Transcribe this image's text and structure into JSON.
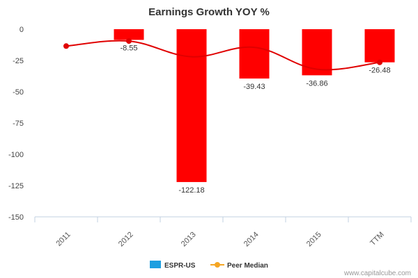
{
  "chart_data": {
    "type": "bar",
    "title": "Earnings Growth YOY %",
    "categories": [
      "2011",
      "2012",
      "2013",
      "2014",
      "2015",
      "TTM"
    ],
    "ylim": [
      -150,
      0
    ],
    "yticks": [
      0,
      -25,
      -50,
      -75,
      -100,
      -125,
      -150
    ],
    "grid": false,
    "legend_position": "bottom-center",
    "series": [
      {
        "name": "ESPR-US",
        "type": "bar",
        "color": "#ff0000",
        "legend_color": "#1e9fe0",
        "values": [
          null,
          -8.55,
          -122.18,
          -39.43,
          -36.86,
          -26.48
        ],
        "labels": [
          "",
          "-8.55",
          "-122.18",
          "-39.43",
          "-36.86",
          "-26.48"
        ]
      },
      {
        "name": "Peer Median",
        "type": "line",
        "color": "#e00000",
        "legend_color": "#f5a623",
        "values": [
          -13.5,
          -9.5,
          -22,
          -14.5,
          -32,
          -26.5
        ]
      }
    ]
  },
  "credit": "www.capitalcube.com"
}
